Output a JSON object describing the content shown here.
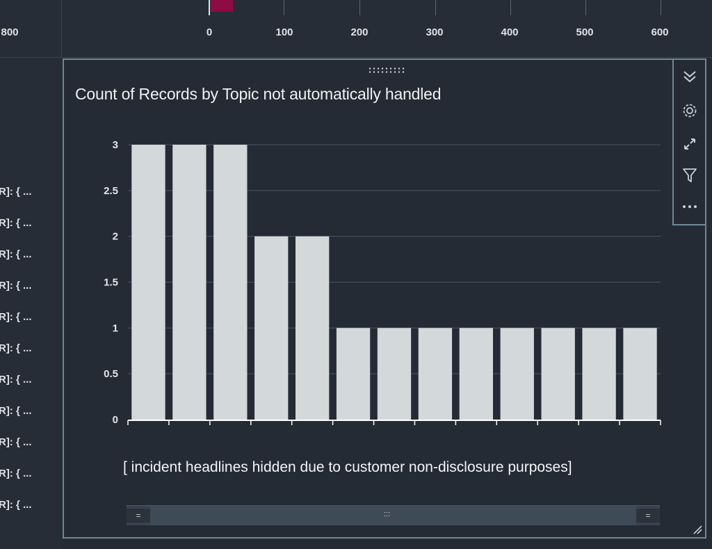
{
  "top_axis": {
    "labels": [
      "800",
      "0",
      "100",
      "200",
      "300",
      "400",
      "500",
      "600"
    ]
  },
  "left_rows": [
    "R]: { ...",
    "R]: { ...",
    "R]: { ...",
    "R]: { ...",
    "R]: { ...",
    "R]: { ...",
    "R]: { ...",
    "R]: { ...",
    "R]: { ...",
    "R]: { ...",
    "R]: { ..."
  ],
  "panel": {
    "title": "Count of Records by Topic not automatically handled",
    "caption": "[ incident headlines hidden due to customer non-disclosure purposes]",
    "toolbar": [
      "collapse-icon",
      "settings-icon",
      "expand-icon",
      "filter-icon",
      "more-icon"
    ],
    "scroll_left": "=",
    "scroll_right": "=",
    "scroll_grip": ":::"
  },
  "chart_data": {
    "type": "bar",
    "title": "Count of Records by Topic not automatically handled",
    "categories": [
      "",
      "",
      "",
      "",
      "",
      "",
      "",
      "",
      "",
      "",
      "",
      "",
      ""
    ],
    "values": [
      3,
      3,
      3,
      2,
      2,
      1,
      1,
      1,
      1,
      1,
      1,
      1,
      1
    ],
    "yticks": [
      "0",
      "0.5",
      "1",
      "1.5",
      "2",
      "2.5",
      "3"
    ],
    "ylim": [
      0,
      3
    ],
    "grid": true,
    "bar_color": "#d3d9db"
  },
  "colors": {
    "background": "#252b34",
    "border": "#6f8898",
    "accent_bar": "#8e0b43"
  }
}
